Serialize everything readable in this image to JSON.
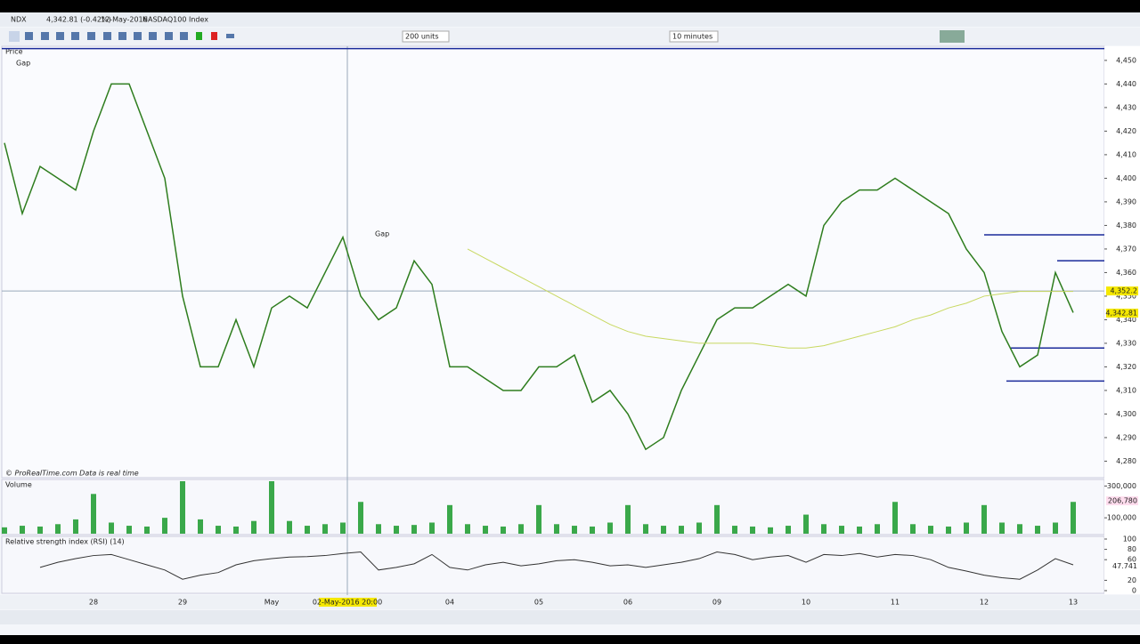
{
  "header": {
    "symbol": "NDX",
    "quote": "4,342.81 (-0.42%)",
    "date": "12-May-2016",
    "name": "NASDAQ100 Index"
  },
  "toolbar": {
    "units": "200 units",
    "interval": "10 minutes"
  },
  "panels": {
    "price": "Price",
    "gap_top": "Gap",
    "gap_mid": "Gap",
    "credit": "© ProRealTime.com  Data is real time",
    "volume": "Volume",
    "rsi": "Relative strength index (RSI) (14)"
  },
  "x_axis": {
    "labels": [
      "28",
      "29",
      "May",
      "04",
      "05",
      "06",
      "09",
      "10",
      "11",
      "12",
      "13"
    ],
    "cursor_label": "02-May-2016 20:00"
  },
  "chart_data": [
    {
      "type": "line",
      "name": "price",
      "series": [
        {
          "name": "NDX",
          "color": "#2e7d1e",
          "values": [
            4415,
            4385,
            4405,
            4400,
            4395,
            4420,
            4440,
            4440,
            4420,
            4400,
            4350,
            4320,
            4320,
            4340,
            4320,
            4345,
            4350,
            4345,
            4360,
            4375,
            4350,
            4340,
            4345,
            4365,
            4355,
            4320,
            4320,
            4315,
            4310,
            4310,
            4320,
            4320,
            4325,
            4305,
            4310,
            4300,
            4285,
            4290,
            4310,
            4325,
            4340,
            4345,
            4345,
            4350,
            4355,
            4350,
            4380,
            4390,
            4395,
            4395,
            4400,
            4395,
            4390,
            4385,
            4370,
            4360,
            4335,
            4320,
            4325,
            4360,
            4343
          ]
        },
        {
          "name": "MA",
          "color": "#c8d860",
          "values": [
            null,
            null,
            null,
            null,
            null,
            null,
            null,
            null,
            null,
            null,
            null,
            null,
            null,
            null,
            null,
            null,
            null,
            null,
            null,
            null,
            null,
            null,
            null,
            null,
            null,
            null,
            4370,
            4366,
            4362,
            4358,
            4354,
            4350,
            4346,
            4342,
            4338,
            4335,
            4333,
            4332,
            4331,
            4330,
            4330,
            4330,
            4330,
            4329,
            4328,
            4328,
            4329,
            4331,
            4333,
            4335,
            4337,
            4340,
            4342,
            4345,
            4347,
            4350,
            4351,
            4352,
            4352,
            4352,
            4352
          ]
        }
      ],
      "levels": [
        4455,
        4376,
        4365,
        4328,
        4314
      ],
      "cursor_value": 4352.2,
      "markers": [
        {
          "value": 4352.2,
          "label": "4,352.2"
        },
        {
          "value": 4342.81,
          "label": "4,342.81"
        }
      ],
      "ylim": [
        4273,
        4456
      ],
      "yticks": [
        {
          "value": 4450,
          "label": "4,450"
        },
        {
          "value": 4440,
          "label": "4,440"
        },
        {
          "value": 4430,
          "label": "4,430"
        },
        {
          "value": 4420,
          "label": "4,420"
        },
        {
          "value": 4410,
          "label": "4,410"
        },
        {
          "value": 4400,
          "label": "4,400"
        },
        {
          "value": 4390,
          "label": "4,390"
        },
        {
          "value": 4380,
          "label": "4,380"
        },
        {
          "value": 4370,
          "label": "4,370"
        },
        {
          "value": 4360,
          "label": "4,360"
        },
        {
          "value": 4350,
          "label": "4,350"
        },
        {
          "value": 4340,
          "label": "4,340"
        },
        {
          "value": 4330,
          "label": "4,330"
        },
        {
          "value": 4320,
          "label": "4,320"
        },
        {
          "value": 4310,
          "label": "4,310"
        },
        {
          "value": 4300,
          "label": "4,300"
        },
        {
          "value": 4290,
          "label": "4,290"
        },
        {
          "value": 4280,
          "label": "4,280"
        }
      ]
    },
    {
      "type": "bar",
      "name": "volume",
      "color": "#3aa84a",
      "values": [
        40000,
        50000,
        45000,
        60000,
        90000,
        250000,
        70000,
        50000,
        45000,
        100000,
        330000,
        90000,
        50000,
        45000,
        80000,
        330000,
        80000,
        50000,
        60000,
        70000,
        200000,
        60000,
        50000,
        55000,
        70000,
        180000,
        60000,
        50000,
        45000,
        60000,
        180000,
        60000,
        50000,
        45000,
        70000,
        180000,
        60000,
        50000,
        50000,
        70000,
        180000,
        50000,
        45000,
        40000,
        50000,
        120000,
        60000,
        50000,
        45000,
        60000,
        200000,
        60000,
        50000,
        45000,
        70000,
        180000,
        70000,
        60000,
        50000,
        70000,
        200000
      ],
      "marker": {
        "value": 206780,
        "label": "206,780"
      },
      "ylim": [
        0,
        330000
      ],
      "yticks": [
        {
          "value": 300000,
          "label": "300,000"
        },
        {
          "value": 100000,
          "label": "100,000"
        }
      ]
    },
    {
      "type": "line",
      "name": "rsi",
      "color": "#333",
      "values": [
        null,
        null,
        45,
        55,
        62,
        68,
        70,
        60,
        50,
        40,
        22,
        30,
        35,
        50,
        58,
        62,
        65,
        66,
        68,
        72,
        75,
        40,
        45,
        52,
        70,
        45,
        40,
        50,
        55,
        48,
        52,
        58,
        60,
        55,
        48,
        50,
        45,
        50,
        55,
        62,
        75,
        70,
        60,
        65,
        68,
        55,
        70,
        68,
        72,
        65,
        70,
        68,
        60,
        45,
        38,
        30,
        25,
        22,
        40,
        62,
        50
      ],
      "marker": {
        "value": 47.741,
        "label": "47.741"
      },
      "ylim": [
        0,
        100
      ],
      "yticks": [
        100,
        80,
        60,
        20,
        0
      ]
    }
  ]
}
